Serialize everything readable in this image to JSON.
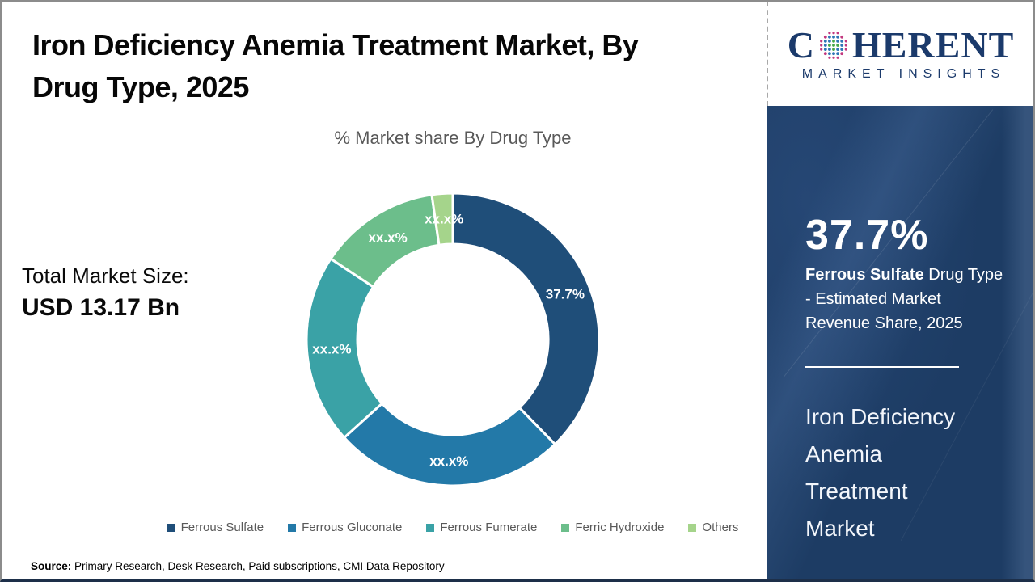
{
  "header": {
    "title_line1": "Iron Deficiency Anemia Treatment Market, By",
    "title_line2": "Drug Type, 2025"
  },
  "total_market": {
    "label": "Total Market Size:",
    "value": "USD 13.17 Bn"
  },
  "chart_data": {
    "type": "pie",
    "donut": true,
    "title": "% Market share By Drug Type",
    "legend_position": "bottom",
    "start_angle_deg": 0,
    "direction": "clockwise",
    "series": [
      {
        "name": "Ferrous Sulfate",
        "value": 37.7,
        "display_label": "37.7%",
        "color": "#1F4E79"
      },
      {
        "name": "Ferrous Gluconate",
        "value": 25.6,
        "display_label": "xx.x%",
        "color": "#2379A8"
      },
      {
        "name": "Ferrous Fumerate",
        "value": 21.0,
        "display_label": "xx.x%",
        "color": "#3AA2A6"
      },
      {
        "name": "Ferric Hydroxide",
        "value": 13.4,
        "display_label": "xx.x%",
        "color": "#6CBE8B"
      },
      {
        "name": "Others",
        "value": 2.3,
        "display_label": "xx.x%",
        "color": "#A5D48B"
      }
    ]
  },
  "sidebar": {
    "logo": {
      "brand_c": "C",
      "brand_rest": "HERENT",
      "tagline": "MARKET INSIGHTS"
    },
    "highlight_value": "37.7%",
    "highlight_bold": "Ferrous Sulfate",
    "highlight_line1_rest": " Drug Type",
    "highlight_line2": "- Estimated Market",
    "highlight_line3": "Revenue Share, 2025",
    "market_name_lines": [
      "Iron Deficiency",
      "Anemia",
      "Treatment",
      "Market"
    ]
  },
  "footer": {
    "source_label": "Source:",
    "source_text": " Primary Research, Desk Research, Paid subscriptions, CMI Data Repository"
  },
  "colors": {
    "sidebar_bg": "#1d3c64",
    "logo_navy": "#1b3a6b",
    "subtitle_gray": "#595959",
    "frame_bottom": "#1d2f49"
  }
}
